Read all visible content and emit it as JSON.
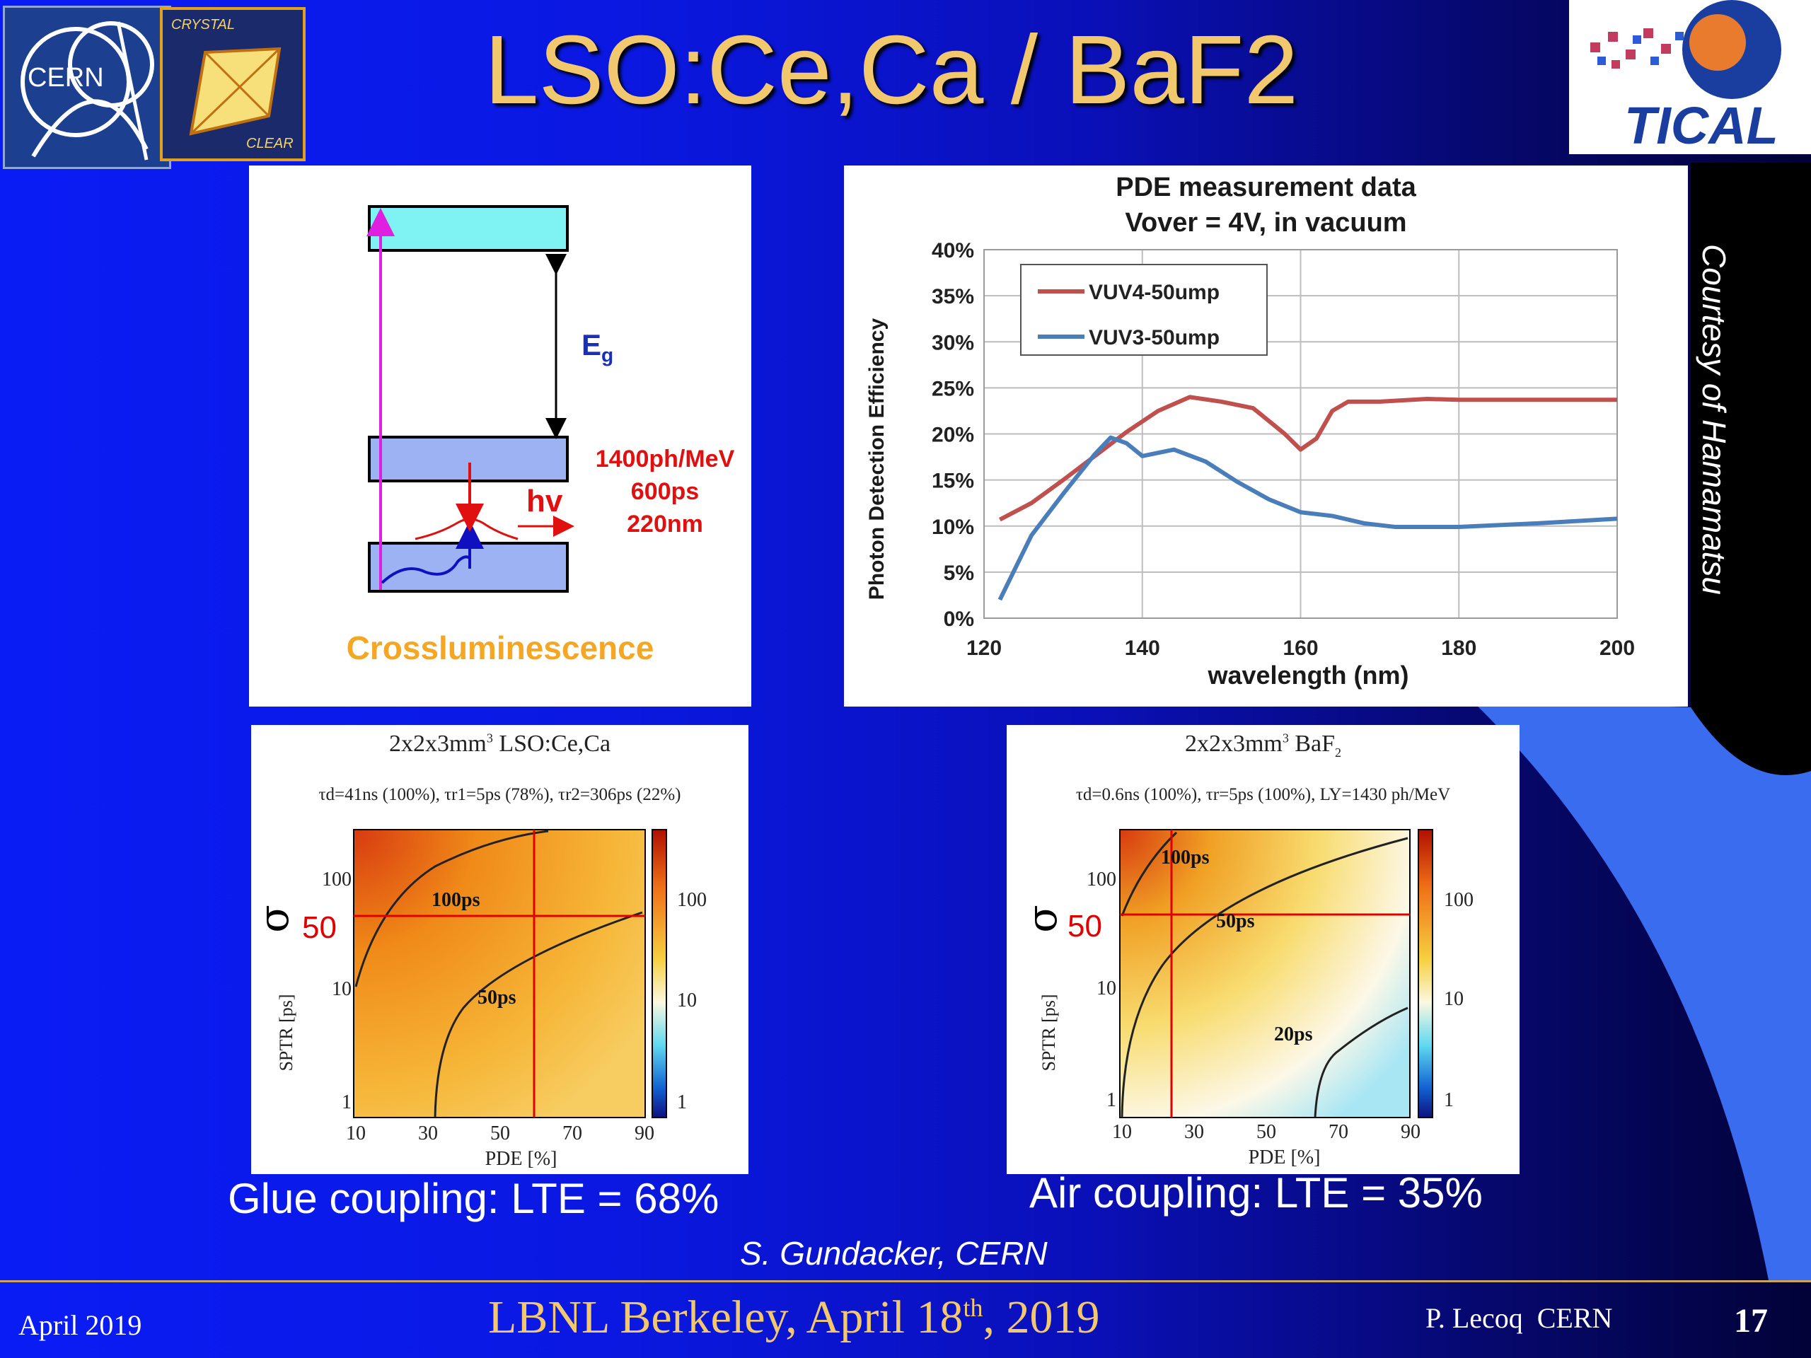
{
  "slide": {
    "title": "LSO:Ce,Ca / BaF2",
    "courtesy": "Courtesy of Hamamatsu",
    "glue_caption": "Glue coupling: LTE = 68%",
    "air_caption": "Air coupling: LTE = 35%",
    "credit": "S. Gundacker, CERN"
  },
  "logos": {
    "cern": "CERN",
    "crystal_top": "CRYSTAL",
    "crystal_bottom": "CLEAR",
    "tical": "TICAL"
  },
  "diagram": {
    "eg_label": "E",
    "eg_sub": "g",
    "hv_label": "hv",
    "stats": [
      "1400ph/MeV",
      "600ps",
      "220nm"
    ],
    "caption": "Crossluminescence"
  },
  "pde_chart": {
    "title_line1": "PDE measurement data",
    "title_line2": "Vover = 4V, in vacuum",
    "xlabel": "wavelength (nm)",
    "ylabel": "Photon Detection Efficiency",
    "x_ticks": [
      "120",
      "140",
      "160",
      "180",
      "200"
    ],
    "y_ticks": [
      "0%",
      "5%",
      "10%",
      "15%",
      "20%",
      "25%",
      "30%",
      "35%",
      "40%"
    ],
    "legend": [
      "VUV4-50ump",
      "VUV3-50ump"
    ]
  },
  "chart_data": [
    {
      "type": "line",
      "title": "PDE measurement data Vover = 4V, in vacuum",
      "xlabel": "wavelength (nm)",
      "ylabel": "Photon Detection Efficiency",
      "xlim": [
        120,
        200
      ],
      "ylim": [
        0,
        40
      ],
      "y_unit": "%",
      "grid": true,
      "legend_position": "top-left",
      "series": [
        {
          "name": "VUV4-50ump",
          "color": "#c0504d",
          "x": [
            122,
            126,
            130,
            134,
            138,
            142,
            146,
            150,
            154,
            158,
            160,
            162,
            164,
            166,
            170,
            176,
            180,
            190,
            200
          ],
          "y": [
            10.7,
            12.5,
            15.0,
            17.6,
            20.2,
            22.5,
            24.0,
            23.5,
            22.8,
            20.0,
            18.3,
            19.5,
            22.5,
            23.5,
            23.5,
            23.8,
            23.7,
            23.7,
            23.7
          ]
        },
        {
          "name": "VUV3-50ump",
          "color": "#4a7ebb",
          "x": [
            122,
            124,
            126,
            130,
            134,
            136,
            138,
            140,
            144,
            148,
            152,
            156,
            160,
            164,
            168,
            172,
            180,
            190,
            200
          ],
          "y": [
            2.0,
            5.5,
            9.0,
            13.5,
            17.8,
            19.6,
            19.0,
            17.6,
            18.3,
            17.0,
            14.8,
            12.9,
            11.5,
            11.1,
            10.3,
            9.9,
            9.9,
            10.3,
            10.8
          ]
        }
      ]
    },
    {
      "type": "heatmap",
      "title": "2x2x3mm³ LSO:Ce,Ca",
      "subtitle": "τd=41ns (100%), τr1=5ps (78%), τr2=306ps (22%)",
      "xlabel": "PDE [%]",
      "ylabel": "SPTR [ps]",
      "x_ticks": [
        10,
        30,
        50,
        70,
        90
      ],
      "y_ticks": [
        1,
        10,
        100
      ],
      "colorbar_ticks": [
        1,
        10,
        100
      ],
      "contours": [
        "100ps",
        "50ps"
      ],
      "marker": {
        "pde": 60,
        "sptr": 50
      }
    },
    {
      "type": "heatmap",
      "title": "2x2x3mm³ BaF₂",
      "subtitle": "τd=0.6ns (100%), τr=5ps (100%), LY=1430 ph/MeV",
      "xlabel": "PDE [%]",
      "ylabel": "SPTR [ps]",
      "x_ticks": [
        10,
        30,
        50,
        70,
        90
      ],
      "y_ticks": [
        1,
        10,
        100
      ],
      "colorbar_ticks": [
        1,
        10,
        100
      ],
      "contours": [
        "100ps",
        "50ps",
        "20ps"
      ],
      "marker": {
        "pde": 24,
        "sptr": 50
      }
    }
  ],
  "heatmap_lso": {
    "title": "2x2x3mm",
    "title_sup": "3",
    "title_rest": " LSO:Ce,Ca",
    "subtitle": "τd=41ns (100%), τr1=5ps (78%), τr2=306ps (22%)",
    "xlabel": "PDE [%]",
    "ylabel": "SPTR [ps]",
    "sigma": "σ",
    "sigma_value": "50",
    "x_ticks": [
      "10",
      "30",
      "50",
      "70",
      "90"
    ],
    "y_ticks": [
      "100",
      "10",
      "1"
    ],
    "cb_ticks": [
      "100",
      "10",
      "1"
    ],
    "c1": "100ps",
    "c2": "50ps"
  },
  "heatmap_baf": {
    "title": "2x2x3mm",
    "title_sup": "3",
    "title_rest": " BaF",
    "title_sub": "2",
    "subtitle": "τd=0.6ns (100%), τr=5ps (100%), LY=1430 ph/MeV",
    "xlabel": "PDE [%]",
    "ylabel": "SPTR [ps]",
    "sigma": "σ",
    "sigma_value": "50",
    "x_ticks": [
      "10",
      "30",
      "50",
      "70",
      "90"
    ],
    "y_ticks": [
      "100",
      "10",
      "1"
    ],
    "cb_ticks": [
      "100",
      "10",
      "1"
    ],
    "c1": "100ps",
    "c2": "50ps",
    "c3": "20ps"
  },
  "footer": {
    "date": "April 2019",
    "event": "LBNL Berkeley, April 18",
    "event_sup": "th",
    "event_year": ", 2019",
    "author": "P. Lecoq  CERN",
    "page": "17"
  }
}
